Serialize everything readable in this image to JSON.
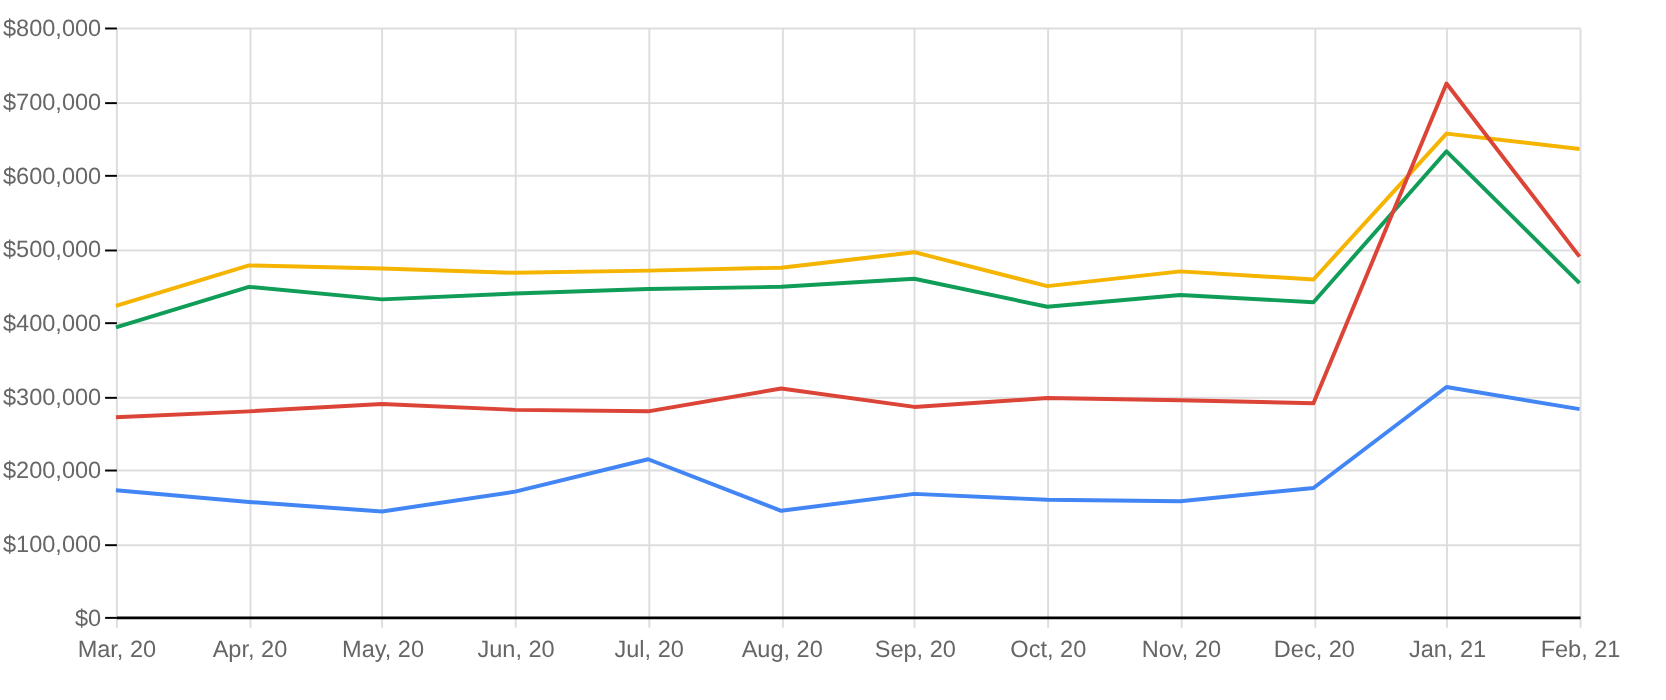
{
  "chart_data": {
    "type": "line",
    "categories": [
      "Mar, 20",
      "Apr, 20",
      "May, 20",
      "Jun, 20",
      "Jul, 20",
      "Aug, 20",
      "Sep, 20",
      "Oct, 20",
      "Nov, 20",
      "Dec, 20",
      "Jan, 21",
      "Feb, 21"
    ],
    "series": [
      {
        "color": "#f4b400",
        "values": [
          422000,
          477000,
          473000,
          467000,
          470000,
          474000,
          495000,
          449000,
          469000,
          458000,
          656000,
          635000
        ]
      },
      {
        "color": "#0f9d58",
        "values": [
          393000,
          448000,
          431000,
          439000,
          445000,
          448000,
          459000,
          421000,
          437000,
          427000,
          632000,
          453000
        ]
      },
      {
        "color": "#db4437",
        "values": [
          271000,
          279000,
          289000,
          281000,
          279000,
          310000,
          285000,
          297000,
          294000,
          290000,
          724000,
          489000
        ]
      },
      {
        "color": "#4285f4",
        "values": [
          172000,
          156000,
          143000,
          170000,
          214000,
          144000,
          167000,
          159000,
          157000,
          175000,
          312000,
          282000
        ]
      }
    ],
    "ylim": [
      0,
      800000
    ],
    "yticks": [
      {
        "value": 0,
        "label": "$0"
      },
      {
        "value": 100000,
        "label": "$100,000"
      },
      {
        "value": 200000,
        "label": "$200,000"
      },
      {
        "value": 300000,
        "label": "$300,000"
      },
      {
        "value": 400000,
        "label": "$400,000"
      },
      {
        "value": 500000,
        "label": "$500,000"
      },
      {
        "value": 600000,
        "label": "$600,000"
      },
      {
        "value": 700000,
        "label": "$700,000"
      },
      {
        "value": 800000,
        "label": "$800,000"
      }
    ],
    "grid": true,
    "marker": "none",
    "line_style": "solid"
  }
}
